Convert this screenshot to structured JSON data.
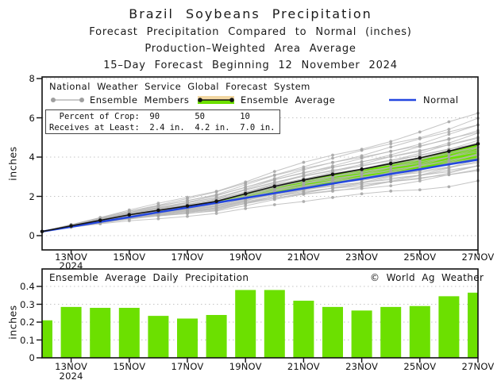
{
  "title": {
    "main": "Brazil Soybeans Precipitation",
    "sub1": "Forecast Precipitation Compared to Normal (inches)",
    "sub2": "Production–Weighted Area Average",
    "sub3": "15–Day Forecast Beginning 12 November 2024"
  },
  "colors": {
    "green": "#6ce000",
    "blue": "#2447e0",
    "member_gray": "#b7b7b7",
    "member_dot_gray": "#a4a4a4",
    "avg_black": "#141414",
    "band_tan": "#f2d7a2",
    "grid_gray": "#c4c4c4",
    "axis_black": "#111111"
  },
  "chart_data": [
    {
      "type": "line",
      "source": "National Weather Service Global Forecast System",
      "legend": [
        {
          "label": "Ensemble Members"
        },
        {
          "label": "Ensemble Average"
        },
        {
          "label": "Normal"
        }
      ],
      "crop_box": {
        "line1": "  Percent of Crop:  90       50       10",
        "line2": "Receives at Least:  2.4 in.  4.2 in.  7.0 in."
      },
      "ylabel": "inches",
      "ylim": [
        0,
        8
      ],
      "yticks": [
        0,
        2,
        4,
        6,
        8
      ],
      "x_tick_labels": [
        "13NOV",
        "15NOV",
        "17NOV",
        "19NOV",
        "21NOV",
        "23NOV",
        "25NOV",
        "27NOV"
      ],
      "x_year_label": "2024",
      "x_start_date": "12NOV",
      "ensemble_average_cumulative": [
        0.21,
        0.5,
        0.78,
        1.06,
        1.29,
        1.51,
        1.75,
        2.13,
        2.51,
        2.83,
        3.12,
        3.38,
        3.67,
        3.96,
        4.3,
        4.67
      ],
      "normal_cumulative": [
        0.21,
        0.45,
        0.7,
        0.94,
        1.19,
        1.43,
        1.67,
        1.92,
        2.16,
        2.41,
        2.65,
        2.89,
        3.14,
        3.38,
        3.63,
        3.87
      ],
      "member_final_values": [
        2.8,
        3.3,
        3.4,
        3.5,
        3.55,
        3.62,
        3.7,
        3.78,
        3.85,
        3.92,
        3.98,
        4.05,
        4.12,
        4.2,
        4.28,
        4.35,
        4.42,
        4.5,
        4.58,
        4.66,
        4.75,
        4.85,
        4.95,
        5.05,
        5.15,
        5.28,
        5.4,
        5.55,
        5.72,
        5.95,
        6.2
      ]
    },
    {
      "type": "bar",
      "header": "Ensemble Average Daily Precipitation",
      "copyright": "© World Ag Weather",
      "ylabel": "inches",
      "ylim": [
        0,
        0.45
      ],
      "yticks": [
        0,
        0.1,
        0.2,
        0.3,
        0.4
      ],
      "x_tick_labels": [
        "13NOV",
        "15NOV",
        "17NOV",
        "19NOV",
        "21NOV",
        "23NOV",
        "25NOV",
        "27NOV"
      ],
      "x_year_label": "2024",
      "values": [
        0.21,
        0.285,
        0.28,
        0.28,
        0.235,
        0.22,
        0.24,
        0.38,
        0.38,
        0.32,
        0.285,
        0.265,
        0.285,
        0.29,
        0.345,
        0.365
      ]
    }
  ]
}
